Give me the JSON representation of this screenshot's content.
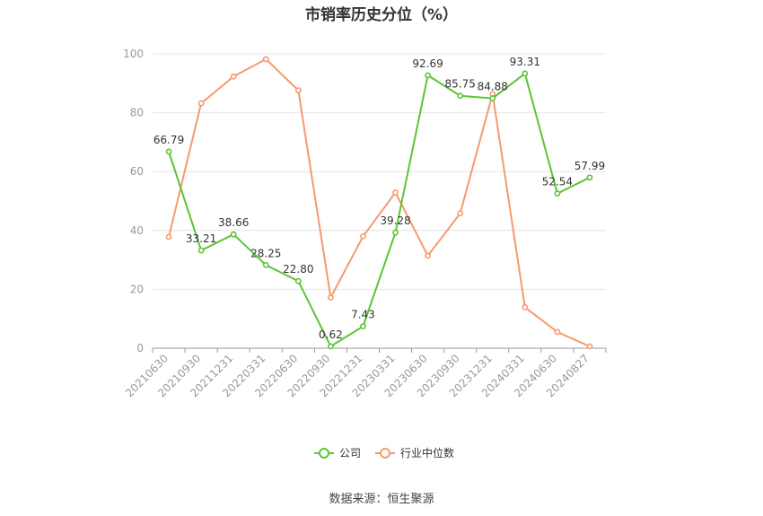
{
  "chart_data": {
    "type": "line",
    "title": "市销率历史分位（%）",
    "categories": [
      "20210630",
      "20210930",
      "20211231",
      "20220331",
      "20220630",
      "20220930",
      "20221231",
      "20230331",
      "20230630",
      "20230930",
      "20231231",
      "20240331",
      "20240630",
      "20240827"
    ],
    "yticks": [
      "0",
      "20",
      "40",
      "60",
      "80",
      "100"
    ],
    "ylim": [
      0,
      100
    ],
    "grid": true,
    "legend_position": "bottom-center",
    "series": [
      {
        "name": "公司",
        "color": "#5cc534",
        "values": [
          66.79,
          33.21,
          38.66,
          28.25,
          22.8,
          0.62,
          7.43,
          39.28,
          92.69,
          85.75,
          84.88,
          93.31,
          52.54,
          57.99
        ],
        "labels": [
          "66.79",
          "33.21",
          "38.66",
          "28.25",
          "22.80",
          "0.62",
          "7.43",
          "39.28",
          "92.69",
          "85.75",
          "84.88",
          "93.31",
          "52.54",
          "57.99"
        ]
      },
      {
        "name": "行业中位数",
        "color": "#f59a6e",
        "values": [
          37.8,
          83.2,
          92.3,
          98.2,
          87.6,
          17.2,
          38.0,
          52.9,
          31.4,
          45.8,
          86.4,
          13.9,
          5.5,
          0.6
        ]
      }
    ]
  },
  "source_text": "数据来源：恒生聚源"
}
